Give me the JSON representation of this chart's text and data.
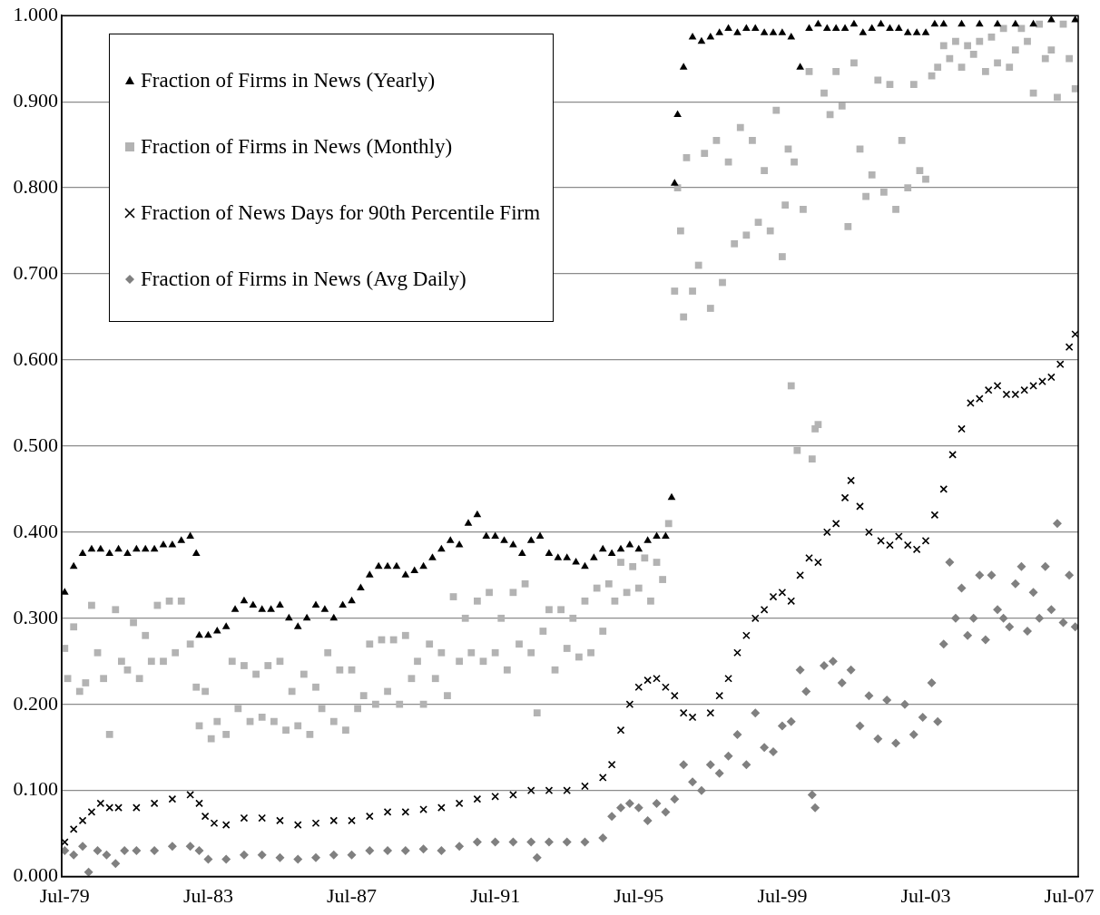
{
  "chart_data": {
    "type": "scatter",
    "xlim": [
      "1979-06",
      "2007-10"
    ],
    "ylim": [
      0,
      1
    ],
    "xticks": [
      {
        "value": "1979-07",
        "label": "Jul-79"
      },
      {
        "value": "1983-07",
        "label": "Jul-83"
      },
      {
        "value": "1987-07",
        "label": "Jul-87"
      },
      {
        "value": "1991-07",
        "label": "Jul-91"
      },
      {
        "value": "1995-07",
        "label": "Jul-95"
      },
      {
        "value": "1999-07",
        "label": "Jul-99"
      },
      {
        "value": "2003-07",
        "label": "Jul-03"
      },
      {
        "value": "2007-07",
        "label": "Jul-07"
      }
    ],
    "yticks": [
      {
        "value": 0,
        "label": "0.000"
      },
      {
        "value": 0.1,
        "label": "0.100"
      },
      {
        "value": 0.2,
        "label": "0.200"
      },
      {
        "value": 0.3,
        "label": "0.300"
      },
      {
        "value": 0.4,
        "label": "0.400"
      },
      {
        "value": 0.5,
        "label": "0.500"
      },
      {
        "value": 0.6,
        "label": "0.600"
      },
      {
        "value": 0.7,
        "label": "0.700"
      },
      {
        "value": 0.8,
        "label": "0.800"
      },
      {
        "value": 0.9,
        "label": "0.900"
      },
      {
        "value": 1,
        "label": "1.000"
      }
    ],
    "grid": "y",
    "legend": "top left",
    "series": [
      {
        "name": "Fraction of Firms in News (Yearly)",
        "color": "#000000",
        "marker": "triangle",
        "x": [
          "1979-07",
          "1979-10",
          "1980-01",
          "1980-04",
          "1980-07",
          "1980-10",
          "1981-01",
          "1981-04",
          "1981-07",
          "1981-10",
          "1982-01",
          "1982-04",
          "1982-07",
          "1982-10",
          "1983-01",
          "1983-03",
          "1983-04",
          "1983-07",
          "1983-10",
          "1984-01",
          "1984-04",
          "1984-07",
          "1984-10",
          "1985-01",
          "1985-04",
          "1985-07",
          "1985-10",
          "1986-01",
          "1986-04",
          "1986-07",
          "1986-10",
          "1987-01",
          "1987-04",
          "1987-07",
          "1987-10",
          "1988-01",
          "1988-04",
          "1988-07",
          "1988-10",
          "1989-01",
          "1989-04",
          "1989-07",
          "1989-10",
          "1990-01",
          "1990-04",
          "1990-07",
          "1990-10",
          "1991-01",
          "1991-04",
          "1991-07",
          "1991-10",
          "1992-01",
          "1992-04",
          "1992-07",
          "1992-10",
          "1993-01",
          "1993-04",
          "1993-07",
          "1993-10",
          "1994-01",
          "1994-04",
          "1994-07",
          "1994-10",
          "1995-01",
          "1995-04",
          "1995-07",
          "1995-10",
          "1996-01",
          "1996-04",
          "1996-06",
          "1996-07",
          "1996-08",
          "1996-10",
          "1997-01",
          "1997-04",
          "1997-07",
          "1997-10",
          "1998-01",
          "1998-04",
          "1998-07",
          "1998-10",
          "1999-01",
          "1999-04",
          "1999-07",
          "1999-10",
          "2000-01",
          "2000-04",
          "2000-07",
          "2000-10",
          "2001-01",
          "2001-04",
          "2001-07",
          "2001-10",
          "2002-01",
          "2002-04",
          "2002-07",
          "2002-10",
          "2003-01",
          "2003-04",
          "2003-07",
          "2003-10",
          "2004-01",
          "2004-07",
          "2005-01",
          "2005-07",
          "2006-01",
          "2006-07",
          "2007-01",
          "2007-09"
        ],
        "values": [
          0.33,
          0.36,
          0.375,
          0.38,
          0.38,
          0.375,
          0.38,
          0.375,
          0.38,
          0.38,
          0.38,
          0.385,
          0.385,
          0.39,
          0.395,
          0.375,
          0.28,
          0.28,
          0.285,
          0.29,
          0.31,
          0.32,
          0.315,
          0.31,
          0.31,
          0.315,
          0.3,
          0.29,
          0.3,
          0.315,
          0.31,
          0.3,
          0.315,
          0.32,
          0.335,
          0.35,
          0.36,
          0.36,
          0.36,
          0.35,
          0.355,
          0.36,
          0.37,
          0.38,
          0.39,
          0.385,
          0.41,
          0.42,
          0.395,
          0.395,
          0.39,
          0.385,
          0.375,
          0.39,
          0.395,
          0.375,
          0.37,
          0.37,
          0.365,
          0.36,
          0.37,
          0.38,
          0.375,
          0.38,
          0.385,
          0.38,
          0.39,
          0.395,
          0.395,
          0.44,
          0.805,
          0.885,
          0.94,
          0.975,
          0.97,
          0.975,
          0.98,
          0.985,
          0.98,
          0.985,
          0.985,
          0.98,
          0.98,
          0.98,
          0.975,
          0.94,
          0.985,
          0.99,
          0.985,
          0.985,
          0.985,
          0.99,
          0.98,
          0.985,
          0.99,
          0.985,
          0.985,
          0.98,
          0.98,
          0.98,
          0.99,
          0.99,
          0.99,
          0.99,
          0.99,
          0.99,
          0.99,
          0.995,
          0.995
        ]
      },
      {
        "name": "Fraction of Firms in News (Monthly)",
        "color": "#b3b3b3",
        "marker": "square",
        "x": [
          "1979-07",
          "1979-08",
          "1979-10",
          "1979-12",
          "1980-02",
          "1980-04",
          "1980-06",
          "1980-08",
          "1980-10",
          "1980-12",
          "1981-02",
          "1981-04",
          "1981-06",
          "1981-08",
          "1981-10",
          "1981-12",
          "1982-02",
          "1982-04",
          "1982-06",
          "1982-08",
          "1982-10",
          "1983-01",
          "1983-03",
          "1983-04",
          "1983-06",
          "1983-08",
          "1983-10",
          "1984-01",
          "1984-03",
          "1984-05",
          "1984-07",
          "1984-09",
          "1984-11",
          "1985-01",
          "1985-03",
          "1985-05",
          "1985-07",
          "1985-09",
          "1985-11",
          "1986-01",
          "1986-03",
          "1986-05",
          "1986-07",
          "1986-09",
          "1986-11",
          "1987-01",
          "1987-03",
          "1987-05",
          "1987-07",
          "1987-09",
          "1987-11",
          "1988-01",
          "1988-03",
          "1988-05",
          "1988-07",
          "1988-09",
          "1988-11",
          "1989-01",
          "1989-03",
          "1989-05",
          "1989-07",
          "1989-09",
          "1989-11",
          "1990-01",
          "1990-03",
          "1990-05",
          "1990-07",
          "1990-09",
          "1990-11",
          "1991-01",
          "1991-03",
          "1991-05",
          "1991-07",
          "1991-09",
          "1991-11",
          "1992-01",
          "1992-03",
          "1992-05",
          "1992-07",
          "1992-09",
          "1992-11",
          "1993-01",
          "1993-03",
          "1993-05",
          "1993-07",
          "1993-09",
          "1993-11",
          "1994-01",
          "1994-03",
          "1994-05",
          "1994-07",
          "1994-09",
          "1994-11",
          "1995-01",
          "1995-03",
          "1995-05",
          "1995-07",
          "1995-09",
          "1995-11",
          "1996-01",
          "1996-03",
          "1996-05",
          "1996-07",
          "1996-08",
          "1996-09",
          "1996-10",
          "1996-11",
          "1997-01",
          "1997-03",
          "1997-05",
          "1997-07",
          "1997-09",
          "1997-11",
          "1998-01",
          "1998-03",
          "1998-05",
          "1998-07",
          "1998-09",
          "1998-11",
          "1999-01",
          "1999-03",
          "1999-05",
          "1999-07",
          "1999-08",
          "1999-09",
          "1999-10",
          "1999-11",
          "1999-12",
          "2000-02",
          "2000-04",
          "2000-05",
          "2000-06",
          "2000-07",
          "2000-09",
          "2000-11",
          "2001-01",
          "2001-03",
          "2001-05",
          "2001-07",
          "2001-09",
          "2001-11",
          "2002-01",
          "2002-03",
          "2002-05",
          "2002-07",
          "2002-09",
          "2002-11",
          "2003-01",
          "2003-03",
          "2003-05",
          "2003-07",
          "2003-09",
          "2003-11",
          "2004-01",
          "2004-03",
          "2004-05",
          "2004-07",
          "2004-09",
          "2004-11",
          "2005-01",
          "2005-03",
          "2005-05",
          "2005-07",
          "2005-09",
          "2005-11",
          "2006-01",
          "2006-03",
          "2006-05",
          "2006-07",
          "2006-09",
          "2006-11",
          "2007-01",
          "2007-03",
          "2007-05",
          "2007-07",
          "2007-09"
        ],
        "values": [
          0.265,
          0.23,
          0.29,
          0.215,
          0.225,
          0.315,
          0.26,
          0.23,
          0.165,
          0.31,
          0.25,
          0.24,
          0.295,
          0.23,
          0.28,
          0.25,
          0.315,
          0.25,
          0.32,
          0.26,
          0.32,
          0.27,
          0.22,
          0.175,
          0.215,
          0.16,
          0.18,
          0.165,
          0.25,
          0.195,
          0.245,
          0.18,
          0.235,
          0.185,
          0.245,
          0.18,
          0.25,
          0.17,
          0.215,
          0.175,
          0.235,
          0.165,
          0.22,
          0.195,
          0.26,
          0.18,
          0.24,
          0.17,
          0.24,
          0.195,
          0.21,
          0.27,
          0.2,
          0.275,
          0.215,
          0.275,
          0.2,
          0.28,
          0.23,
          0.25,
          0.2,
          0.27,
          0.23,
          0.26,
          0.21,
          0.325,
          0.25,
          0.3,
          0.26,
          0.32,
          0.25,
          0.33,
          0.26,
          0.3,
          0.24,
          0.33,
          0.27,
          0.34,
          0.26,
          0.19,
          0.285,
          0.31,
          0.24,
          0.31,
          0.265,
          0.3,
          0.255,
          0.32,
          0.26,
          0.335,
          0.285,
          0.34,
          0.32,
          0.365,
          0.33,
          0.36,
          0.335,
          0.37,
          0.32,
          0.365,
          0.345,
          0.41,
          0.68,
          0.8,
          0.75,
          0.65,
          0.835,
          0.68,
          0.71,
          0.84,
          0.66,
          0.855,
          0.69,
          0.83,
          0.735,
          0.87,
          0.745,
          0.855,
          0.76,
          0.82,
          0.75,
          0.89,
          0.72,
          0.78,
          0.845,
          0.57,
          0.83,
          0.495,
          0.775,
          0.935,
          0.485,
          0.52,
          0.525,
          0.91,
          0.885,
          0.935,
          0.895,
          0.755,
          0.945,
          0.845,
          0.79,
          0.815,
          0.925,
          0.795,
          0.92,
          0.775,
          0.855,
          0.8,
          0.92,
          0.82,
          0.81,
          0.93,
          0.94,
          0.965,
          0.95,
          0.97,
          0.94,
          0.965,
          0.955,
          0.97,
          0.935,
          0.975,
          0.945,
          0.985,
          0.94,
          0.96,
          0.985,
          0.97,
          0.91,
          0.99,
          0.95,
          0.96,
          0.905,
          0.99,
          0.95,
          0.915
        ]
      },
      {
        "name": "Fraction of News Days for 90th Percentile Firm",
        "color": "#000000",
        "marker": "cross",
        "x": [
          "1979-07",
          "1979-10",
          "1980-01",
          "1980-04",
          "1980-07",
          "1980-10",
          "1981-01",
          "1981-07",
          "1982-01",
          "1982-07",
          "1983-01",
          "1983-04",
          "1983-06",
          "1983-09",
          "1984-01",
          "1984-07",
          "1985-01",
          "1985-07",
          "1986-01",
          "1986-07",
          "1987-01",
          "1987-07",
          "1988-01",
          "1988-07",
          "1989-01",
          "1989-07",
          "1990-01",
          "1990-07",
          "1991-01",
          "1991-07",
          "1992-01",
          "1992-07",
          "1993-01",
          "1993-07",
          "1994-01",
          "1994-07",
          "1994-10",
          "1995-01",
          "1995-04",
          "1995-07",
          "1995-10",
          "1996-01",
          "1996-04",
          "1996-07",
          "1996-10",
          "1997-01",
          "1997-07",
          "1997-10",
          "1998-01",
          "1998-04",
          "1998-07",
          "1998-10",
          "1999-01",
          "1999-04",
          "1999-07",
          "1999-10",
          "2000-01",
          "2000-04",
          "2000-07",
          "2000-10",
          "2001-01",
          "2001-04",
          "2001-06",
          "2001-09",
          "2001-12",
          "2002-04",
          "2002-07",
          "2002-10",
          "2003-01",
          "2003-04",
          "2003-07",
          "2003-10",
          "2004-01",
          "2004-04",
          "2004-07",
          "2004-10",
          "2005-01",
          "2005-04",
          "2005-07",
          "2005-10",
          "2006-01",
          "2006-04",
          "2006-07",
          "2006-10",
          "2007-01",
          "2007-04",
          "2007-07",
          "2007-09"
        ],
        "values": [
          0.04,
          0.055,
          0.065,
          0.075,
          0.085,
          0.08,
          0.08,
          0.08,
          0.085,
          0.09,
          0.095,
          0.085,
          0.07,
          0.062,
          0.06,
          0.068,
          0.068,
          0.065,
          0.06,
          0.062,
          0.065,
          0.065,
          0.07,
          0.075,
          0.075,
          0.078,
          0.08,
          0.085,
          0.09,
          0.093,
          0.095,
          0.1,
          0.1,
          0.1,
          0.105,
          0.115,
          0.13,
          0.17,
          0.2,
          0.22,
          0.228,
          0.23,
          0.22,
          0.21,
          0.19,
          0.185,
          0.19,
          0.21,
          0.23,
          0.26,
          0.28,
          0.3,
          0.31,
          0.325,
          0.33,
          0.32,
          0.35,
          0.37,
          0.365,
          0.4,
          0.41,
          0.44,
          0.46,
          0.43,
          0.4,
          0.39,
          0.385,
          0.395,
          0.385,
          0.38,
          0.39,
          0.42,
          0.45,
          0.49,
          0.52,
          0.55,
          0.555,
          0.565,
          0.57,
          0.56,
          0.56,
          0.565,
          0.57,
          0.575,
          0.58,
          0.595,
          0.615,
          0.63
        ]
      },
      {
        "name": "Fraction of Firms in News (Avg Daily)",
        "color": "#808080",
        "marker": "diamond",
        "x": [
          "1979-07",
          "1979-10",
          "1980-01",
          "1980-03",
          "1980-06",
          "1980-09",
          "1980-12",
          "1981-03",
          "1981-07",
          "1982-01",
          "1982-07",
          "1983-01",
          "1983-04",
          "1983-07",
          "1984-01",
          "1984-07",
          "1985-01",
          "1985-07",
          "1986-01",
          "1986-07",
          "1987-01",
          "1987-07",
          "1988-01",
          "1988-07",
          "1989-01",
          "1989-07",
          "1990-01",
          "1990-07",
          "1991-01",
          "1991-07",
          "1992-01",
          "1992-07",
          "1992-09",
          "1993-01",
          "1993-07",
          "1994-01",
          "1994-07",
          "1994-10",
          "1995-01",
          "1995-04",
          "1995-07",
          "1995-10",
          "1996-01",
          "1996-04",
          "1996-07",
          "1996-10",
          "1997-01",
          "1997-04",
          "1997-07",
          "1997-10",
          "1998-01",
          "1998-04",
          "1998-07",
          "1998-10",
          "1999-01",
          "1999-04",
          "1999-07",
          "1999-10",
          "2000-01",
          "2000-03",
          "2000-05",
          "2000-06",
          "2000-09",
          "2000-12",
          "2001-03",
          "2001-06",
          "2001-09",
          "2001-12",
          "2002-03",
          "2002-06",
          "2002-09",
          "2002-12",
          "2003-03",
          "2003-06",
          "2003-09",
          "2003-11",
          "2004-01",
          "2004-03",
          "2004-05",
          "2004-07",
          "2004-09",
          "2004-11",
          "2005-01",
          "2005-03",
          "2005-05",
          "2005-07",
          "2005-09",
          "2005-11",
          "2006-01",
          "2006-03",
          "2006-05",
          "2006-07",
          "2006-09",
          "2006-11",
          "2007-01",
          "2007-03",
          "2007-05",
          "2007-07",
          "2007-09"
        ],
        "values": [
          0.03,
          0.025,
          0.035,
          0.005,
          0.03,
          0.025,
          0.015,
          0.03,
          0.03,
          0.03,
          0.035,
          0.035,
          0.03,
          0.02,
          0.02,
          0.025,
          0.025,
          0.022,
          0.02,
          0.022,
          0.025,
          0.025,
          0.03,
          0.03,
          0.03,
          0.032,
          0.03,
          0.035,
          0.04,
          0.04,
          0.04,
          0.04,
          0.022,
          0.04,
          0.04,
          0.04,
          0.045,
          0.07,
          0.08,
          0.085,
          0.08,
          0.065,
          0.085,
          0.075,
          0.09,
          0.13,
          0.11,
          0.1,
          0.13,
          0.12,
          0.14,
          0.165,
          0.13,
          0.19,
          0.15,
          0.145,
          0.175,
          0.18,
          0.24,
          0.215,
          0.095,
          0.08,
          0.245,
          0.25,
          0.225,
          0.24,
          0.175,
          0.21,
          0.16,
          0.205,
          0.155,
          0.2,
          0.165,
          0.185,
          0.225,
          0.18,
          0.27,
          0.365,
          0.3,
          0.335,
          0.28,
          0.3,
          0.35,
          0.275,
          0.35,
          0.31,
          0.3,
          0.29,
          0.34,
          0.36,
          0.285,
          0.33,
          0.3,
          0.36,
          0.31,
          0.41,
          0.295,
          0.35,
          0.29
        ]
      }
    ]
  }
}
